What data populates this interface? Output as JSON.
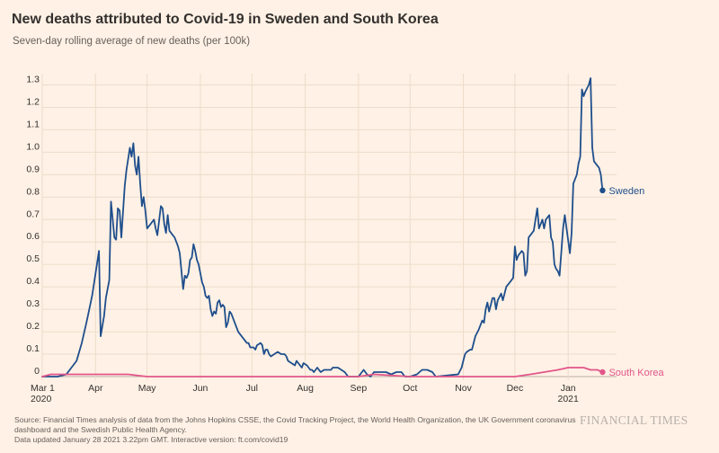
{
  "title": "New deaths attributed to Covid-19 in Sweden and South Korea",
  "subtitle": "Seven-day rolling average of new deaths (per 100k)",
  "source": "Source: Financial Times analysis of data from the Johns Hopkins CSSE, the Covid Tracking Project, the World Health Organization, the UK Government coronavirus dashboard and the Swedish Public Health Agency.",
  "updated": "Data updated January 28 2021 3.22pm GMT. Interactive version: ft.com/covid19",
  "brand": "FINANCIAL TIMES",
  "colors": {
    "background": "#FFF1E5",
    "grid": "#EDDCCB",
    "text": "#33302E",
    "muted": "#66605C",
    "sweden": "#1E4E8C",
    "south_korea": "#E2568A"
  },
  "chart_data": {
    "type": "line",
    "x_unit": "date",
    "ylim": [
      0,
      1.35
    ],
    "xlim": [
      "2020-03-01",
      "2021-01-26"
    ],
    "yticks": [
      {
        "value": 0,
        "label": "0"
      },
      {
        "value": 0.1,
        "label": "0.1"
      },
      {
        "value": 0.2,
        "label": "0.2"
      },
      {
        "value": 0.3,
        "label": "0.3"
      },
      {
        "value": 0.4,
        "label": "0.4"
      },
      {
        "value": 0.5,
        "label": "0.5"
      },
      {
        "value": 0.6,
        "label": "0.6"
      },
      {
        "value": 0.7,
        "label": "0.7"
      },
      {
        "value": 0.8,
        "label": "0.8"
      },
      {
        "value": 0.9,
        "label": "0.9"
      },
      {
        "value": 1.0,
        "label": "1.0"
      },
      {
        "value": 1.1,
        "label": "1.1"
      },
      {
        "value": 1.2,
        "label": "1.2"
      },
      {
        "value": 1.3,
        "label": "1.3"
      }
    ],
    "xticks": [
      {
        "date": "2020-03-01",
        "label": "Mar 1",
        "sublabel": "2020"
      },
      {
        "date": "2020-04-01",
        "label": "Apr"
      },
      {
        "date": "2020-05-01",
        "label": "May"
      },
      {
        "date": "2020-06-01",
        "label": "Jun"
      },
      {
        "date": "2020-07-01",
        "label": "Jul"
      },
      {
        "date": "2020-08-01",
        "label": "Aug"
      },
      {
        "date": "2020-09-01",
        "label": "Sep"
      },
      {
        "date": "2020-10-01",
        "label": "Oct"
      },
      {
        "date": "2020-11-01",
        "label": "Nov"
      },
      {
        "date": "2020-12-01",
        "label": "Dec"
      },
      {
        "date": "2021-01-01",
        "label": "Jan",
        "sublabel": "2021"
      }
    ],
    "grid": true,
    "series": [
      {
        "name": "Sweden",
        "color": "#1E4E8C",
        "points": [
          [
            "2020-03-01",
            0.0
          ],
          [
            "2020-03-10",
            0.0
          ],
          [
            "2020-03-15",
            0.01
          ],
          [
            "2020-03-18",
            0.04
          ],
          [
            "2020-03-21",
            0.07
          ],
          [
            "2020-03-24",
            0.15
          ],
          [
            "2020-03-27",
            0.25
          ],
          [
            "2020-03-30",
            0.36
          ],
          [
            "2020-04-01",
            0.46
          ],
          [
            "2020-04-03",
            0.56
          ],
          [
            "2020-04-04",
            0.18
          ],
          [
            "2020-04-06",
            0.27
          ],
          [
            "2020-04-07",
            0.35
          ],
          [
            "2020-04-09",
            0.43
          ],
          [
            "2020-04-10",
            0.78
          ],
          [
            "2020-04-11",
            0.7
          ],
          [
            "2020-04-12",
            0.62
          ],
          [
            "2020-04-13",
            0.61
          ],
          [
            "2020-04-14",
            0.75
          ],
          [
            "2020-04-15",
            0.74
          ],
          [
            "2020-04-16",
            0.62
          ],
          [
            "2020-04-18",
            0.85
          ],
          [
            "2020-04-19",
            0.92
          ],
          [
            "2020-04-21",
            1.02
          ],
          [
            "2020-04-22",
            0.98
          ],
          [
            "2020-04-23",
            1.04
          ],
          [
            "2020-04-24",
            0.94
          ],
          [
            "2020-04-25",
            0.9
          ],
          [
            "2020-04-26",
            0.98
          ],
          [
            "2020-04-27",
            0.86
          ],
          [
            "2020-04-28",
            0.76
          ],
          [
            "2020-04-29",
            0.8
          ],
          [
            "2020-04-30",
            0.74
          ],
          [
            "2020-05-01",
            0.66
          ],
          [
            "2020-05-03",
            0.68
          ],
          [
            "2020-05-05",
            0.7
          ],
          [
            "2020-05-06",
            0.66
          ],
          [
            "2020-05-07",
            0.63
          ],
          [
            "2020-05-09",
            0.76
          ],
          [
            "2020-05-10",
            0.75
          ],
          [
            "2020-05-11",
            0.68
          ],
          [
            "2020-05-12",
            0.64
          ],
          [
            "2020-05-13",
            0.72
          ],
          [
            "2020-05-14",
            0.65
          ],
          [
            "2020-05-16",
            0.63
          ],
          [
            "2020-05-17",
            0.62
          ],
          [
            "2020-05-19",
            0.58
          ],
          [
            "2020-05-20",
            0.55
          ],
          [
            "2020-05-21",
            0.47
          ],
          [
            "2020-05-22",
            0.39
          ],
          [
            "2020-05-23",
            0.45
          ],
          [
            "2020-05-24",
            0.44
          ],
          [
            "2020-05-25",
            0.46
          ],
          [
            "2020-05-26",
            0.52
          ],
          [
            "2020-05-27",
            0.53
          ],
          [
            "2020-05-28",
            0.59
          ],
          [
            "2020-05-29",
            0.56
          ],
          [
            "2020-05-30",
            0.52
          ],
          [
            "2020-05-31",
            0.5
          ],
          [
            "2020-06-02",
            0.42
          ],
          [
            "2020-06-03",
            0.4
          ],
          [
            "2020-06-04",
            0.36
          ],
          [
            "2020-06-05",
            0.35
          ],
          [
            "2020-06-06",
            0.36
          ],
          [
            "2020-06-07",
            0.3
          ],
          [
            "2020-06-08",
            0.27
          ],
          [
            "2020-06-09",
            0.29
          ],
          [
            "2020-06-10",
            0.28
          ],
          [
            "2020-06-11",
            0.33
          ],
          [
            "2020-06-12",
            0.34
          ],
          [
            "2020-06-13",
            0.31
          ],
          [
            "2020-06-14",
            0.32
          ],
          [
            "2020-06-15",
            0.31
          ],
          [
            "2020-06-16",
            0.22
          ],
          [
            "2020-06-17",
            0.24
          ],
          [
            "2020-06-18",
            0.29
          ],
          [
            "2020-06-19",
            0.28
          ],
          [
            "2020-06-20",
            0.26
          ],
          [
            "2020-06-21",
            0.24
          ],
          [
            "2020-06-22",
            0.22
          ],
          [
            "2020-06-23",
            0.2
          ],
          [
            "2020-06-25",
            0.18
          ],
          [
            "2020-06-27",
            0.16
          ],
          [
            "2020-06-28",
            0.15
          ],
          [
            "2020-06-29",
            0.15
          ],
          [
            "2020-06-30",
            0.13
          ],
          [
            "2020-07-02",
            0.13
          ],
          [
            "2020-07-03",
            0.12
          ],
          [
            "2020-07-04",
            0.14
          ],
          [
            "2020-07-06",
            0.15
          ],
          [
            "2020-07-07",
            0.14
          ],
          [
            "2020-07-08",
            0.1
          ],
          [
            "2020-07-09",
            0.12
          ],
          [
            "2020-07-10",
            0.12
          ],
          [
            "2020-07-11",
            0.1
          ],
          [
            "2020-07-12",
            0.09
          ],
          [
            "2020-07-14",
            0.1
          ],
          [
            "2020-07-16",
            0.11
          ],
          [
            "2020-07-18",
            0.1
          ],
          [
            "2020-07-20",
            0.1
          ],
          [
            "2020-07-21",
            0.09
          ],
          [
            "2020-07-22",
            0.07
          ],
          [
            "2020-07-24",
            0.06
          ],
          [
            "2020-07-26",
            0.05
          ],
          [
            "2020-07-27",
            0.07
          ],
          [
            "2020-07-28",
            0.06
          ],
          [
            "2020-07-30",
            0.04
          ],
          [
            "2020-07-31",
            0.06
          ],
          [
            "2020-08-02",
            0.05
          ],
          [
            "2020-08-04",
            0.03
          ],
          [
            "2020-08-05",
            0.03
          ],
          [
            "2020-08-06",
            0.02
          ],
          [
            "2020-08-08",
            0.04
          ],
          [
            "2020-08-10",
            0.02
          ],
          [
            "2020-08-12",
            0.03
          ],
          [
            "2020-08-14",
            0.03
          ],
          [
            "2020-08-16",
            0.03
          ],
          [
            "2020-08-17",
            0.04
          ],
          [
            "2020-08-20",
            0.04
          ],
          [
            "2020-08-22",
            0.03
          ],
          [
            "2020-08-24",
            0.02
          ],
          [
            "2020-08-26",
            0.0
          ],
          [
            "2020-09-01",
            0.0
          ],
          [
            "2020-09-02",
            0.01
          ],
          [
            "2020-09-04",
            0.03
          ],
          [
            "2020-09-06",
            0.01
          ],
          [
            "2020-09-08",
            0.0
          ],
          [
            "2020-09-10",
            0.02
          ],
          [
            "2020-09-12",
            0.02
          ],
          [
            "2020-09-14",
            0.02
          ],
          [
            "2020-09-17",
            0.02
          ],
          [
            "2020-09-20",
            0.01
          ],
          [
            "2020-09-23",
            0.02
          ],
          [
            "2020-09-26",
            0.02
          ],
          [
            "2020-09-28",
            0.0
          ],
          [
            "2020-10-01",
            0.0
          ],
          [
            "2020-10-05",
            0.01
          ],
          [
            "2020-10-08",
            0.03
          ],
          [
            "2020-10-11",
            0.03
          ],
          [
            "2020-10-14",
            0.02
          ],
          [
            "2020-10-16",
            0.0
          ],
          [
            "2020-10-29",
            0.01
          ],
          [
            "2020-10-31",
            0.04
          ],
          [
            "2020-11-02",
            0.1
          ],
          [
            "2020-11-03",
            0.11
          ],
          [
            "2020-11-05",
            0.12
          ],
          [
            "2020-11-06",
            0.12
          ],
          [
            "2020-11-08",
            0.18
          ],
          [
            "2020-11-10",
            0.21
          ],
          [
            "2020-11-12",
            0.25
          ],
          [
            "2020-11-13",
            0.24
          ],
          [
            "2020-11-14",
            0.3
          ],
          [
            "2020-11-15",
            0.33
          ],
          [
            "2020-11-16",
            0.29
          ],
          [
            "2020-11-18",
            0.35
          ],
          [
            "2020-11-19",
            0.35
          ],
          [
            "2020-11-20",
            0.3
          ],
          [
            "2020-11-21",
            0.34
          ],
          [
            "2020-11-23",
            0.37
          ],
          [
            "2020-11-24",
            0.34
          ],
          [
            "2020-11-26",
            0.4
          ],
          [
            "2020-11-28",
            0.42
          ],
          [
            "2020-11-30",
            0.44
          ],
          [
            "2020-12-01",
            0.58
          ],
          [
            "2020-12-02",
            0.52
          ],
          [
            "2020-12-03",
            0.54
          ],
          [
            "2020-12-05",
            0.56
          ],
          [
            "2020-12-06",
            0.55
          ],
          [
            "2020-12-07",
            0.45
          ],
          [
            "2020-12-08",
            0.47
          ],
          [
            "2020-12-09",
            0.62
          ],
          [
            "2020-12-12",
            0.65
          ],
          [
            "2020-12-14",
            0.75
          ],
          [
            "2020-12-15",
            0.66
          ],
          [
            "2020-12-16",
            0.68
          ],
          [
            "2020-12-17",
            0.7
          ],
          [
            "2020-12-18",
            0.66
          ],
          [
            "2020-12-19",
            0.7
          ],
          [
            "2020-12-21",
            0.72
          ],
          [
            "2020-12-22",
            0.62
          ],
          [
            "2020-12-23",
            0.6
          ],
          [
            "2020-12-24",
            0.5
          ],
          [
            "2020-12-25",
            0.48
          ],
          [
            "2020-12-26",
            0.47
          ],
          [
            "2020-12-27",
            0.45
          ],
          [
            "2020-12-29",
            0.66
          ],
          [
            "2020-12-30",
            0.72
          ],
          [
            "2021-01-02",
            0.55
          ],
          [
            "2021-01-03",
            0.64
          ],
          [
            "2021-01-04",
            0.86
          ],
          [
            "2021-01-06",
            0.9
          ],
          [
            "2021-01-07",
            0.95
          ],
          [
            "2021-01-08",
            0.98
          ],
          [
            "2021-01-09",
            1.28
          ],
          [
            "2021-01-10",
            1.25
          ],
          [
            "2021-01-11",
            1.27
          ],
          [
            "2021-01-13",
            1.3
          ],
          [
            "2021-01-14",
            1.33
          ],
          [
            "2021-01-15",
            1.02
          ],
          [
            "2021-01-16",
            0.96
          ],
          [
            "2021-01-19",
            0.93
          ],
          [
            "2021-01-20",
            0.9
          ],
          [
            "2021-01-21",
            0.83
          ]
        ]
      },
      {
        "name": "South Korea",
        "color": "#E2568A",
        "points": [
          [
            "2020-03-01",
            0.0
          ],
          [
            "2020-03-06",
            0.01
          ],
          [
            "2020-03-15",
            0.01
          ],
          [
            "2020-03-25",
            0.01
          ],
          [
            "2020-04-01",
            0.01
          ],
          [
            "2020-04-10",
            0.01
          ],
          [
            "2020-04-20",
            0.01
          ],
          [
            "2020-05-01",
            0.0
          ],
          [
            "2020-06-01",
            0.0
          ],
          [
            "2020-07-01",
            0.0
          ],
          [
            "2020-08-01",
            0.0
          ],
          [
            "2020-09-01",
            0.0
          ],
          [
            "2020-09-10",
            0.01
          ],
          [
            "2020-10-01",
            0.0
          ],
          [
            "2020-11-01",
            0.0
          ],
          [
            "2020-11-20",
            0.0
          ],
          [
            "2020-12-01",
            0.0
          ],
          [
            "2020-12-10",
            0.01
          ],
          [
            "2020-12-18",
            0.02
          ],
          [
            "2020-12-26",
            0.03
          ],
          [
            "2021-01-01",
            0.04
          ],
          [
            "2021-01-06",
            0.04
          ],
          [
            "2021-01-10",
            0.04
          ],
          [
            "2021-01-14",
            0.03
          ],
          [
            "2021-01-18",
            0.03
          ],
          [
            "2021-01-21",
            0.02
          ]
        ]
      }
    ]
  }
}
